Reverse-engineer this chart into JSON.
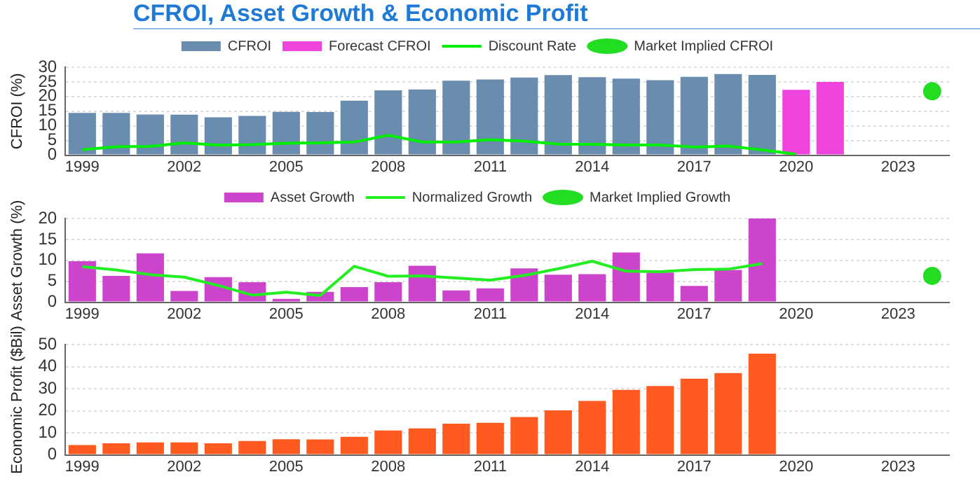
{
  "chart_data": [
    {
      "type": "bar",
      "title": "CFROI, Asset Growth & Economic Profit",
      "ylabel": "CFROI (%)",
      "categories": [
        "1999",
        null,
        null,
        "2002",
        null,
        null,
        "2005",
        null,
        null,
        "2008",
        null,
        null,
        "2011",
        null,
        null,
        "2014",
        null,
        null,
        "2017",
        null,
        null,
        "2020",
        null,
        null,
        "2023",
        null
      ],
      "series": [
        {
          "name": "CFROI",
          "color": "#6a8caf",
          "values": [
            14.4,
            14.4,
            13.9,
            13.8,
            12.9,
            13.4,
            14.8,
            14.7,
            18.6,
            22.1,
            22.4,
            25.4,
            25.8,
            26.5,
            27.3,
            26.6,
            26.1,
            25.6,
            26.7,
            27.7,
            27.4,
            null,
            null,
            null,
            null,
            null
          ]
        },
        {
          "name": "Forecast CFROI",
          "color": "#ee44dd",
          "values": [
            null,
            null,
            null,
            null,
            null,
            null,
            null,
            null,
            null,
            null,
            null,
            null,
            null,
            null,
            null,
            null,
            null,
            null,
            null,
            null,
            null,
            22.3,
            25.0,
            null,
            null,
            null
          ]
        },
        {
          "name": "Discount Rate",
          "type": "line",
          "color": "#00ee00",
          "marker": "none",
          "values": [
            1.9,
            2.9,
            3.0,
            4.2,
            3.4,
            3.6,
            4.1,
            4.2,
            4.5,
            6.8,
            4.5,
            4.5,
            5.3,
            4.8,
            3.8,
            3.7,
            3.5,
            3.5,
            2.8,
            3.1,
            1.8,
            0.3,
            null,
            null,
            null,
            null
          ]
        },
        {
          "name": "Market Implied CFROI",
          "type": "scatter",
          "color": "#22dd22",
          "marker": "circle",
          "values": [
            null,
            null,
            null,
            null,
            null,
            null,
            null,
            null,
            null,
            null,
            null,
            null,
            null,
            null,
            null,
            null,
            null,
            null,
            null,
            null,
            null,
            null,
            null,
            null,
            null,
            21.8
          ]
        }
      ],
      "ylim": [
        0,
        30
      ],
      "yticks": [
        0,
        5,
        10,
        15,
        20,
        25,
        30
      ],
      "grid": "y",
      "legend": "top"
    },
    {
      "type": "bar",
      "ylabel": "Asset Growth (%)",
      "categories": [
        "1999",
        null,
        null,
        "2002",
        null,
        null,
        "2005",
        null,
        null,
        "2008",
        null,
        null,
        "2011",
        null,
        null,
        "2014",
        null,
        null,
        "2017",
        null,
        null,
        "2020",
        null,
        null,
        "2023",
        null
      ],
      "series": [
        {
          "name": "Asset Growth",
          "color": "#cc44cc",
          "values": [
            9.8,
            6.3,
            11.7,
            2.7,
            6.0,
            4.8,
            0.8,
            2.5,
            3.6,
            4.8,
            8.7,
            2.8,
            3.3,
            8.1,
            6.6,
            6.7,
            11.9,
            7.1,
            3.9,
            7.7,
            20,
            null,
            null,
            null,
            null,
            null
          ]
        },
        {
          "name": "Normalized Growth",
          "type": "line",
          "color": "#22ee22",
          "marker": "none",
          "values": [
            8.5,
            7.7,
            6.6,
            6.0,
            4.0,
            1.7,
            2.4,
            1.6,
            8.6,
            6.2,
            6.3,
            5.8,
            5.3,
            6.4,
            8.0,
            9.8,
            7.4,
            7.3,
            7.8,
            7.9,
            9.2,
            null,
            null,
            null,
            null,
            null
          ]
        },
        {
          "name": "Market Implied Growth",
          "type": "scatter",
          "color": "#22dd22",
          "marker": "circle",
          "values": [
            null,
            null,
            null,
            null,
            null,
            null,
            null,
            null,
            null,
            null,
            null,
            null,
            null,
            null,
            null,
            null,
            null,
            null,
            null,
            null,
            null,
            null,
            null,
            null,
            null,
            6.3
          ]
        }
      ],
      "ylim": [
        0,
        20
      ],
      "yticks": [
        0,
        5,
        10,
        15,
        20
      ],
      "grid": "y",
      "legend": "top"
    },
    {
      "type": "bar",
      "ylabel": "Economic Profit ($Bil)",
      "categories": [
        "1999",
        null,
        null,
        "2002",
        null,
        null,
        "2005",
        null,
        null,
        "2008",
        null,
        null,
        "2011",
        null,
        null,
        "2014",
        null,
        null,
        "2017",
        null,
        null,
        "2020",
        null,
        null,
        "2023",
        null
      ],
      "series": [
        {
          "color": "#ff5a1f",
          "values": [
            4.5,
            5.3,
            5.7,
            5.7,
            5.3,
            6.3,
            7.1,
            7.0,
            8.2,
            11.1,
            12.0,
            14.2,
            14.6,
            17.2,
            20.2,
            24.5,
            29.5,
            31.3,
            34.6,
            37.2,
            46.0,
            null,
            null,
            null,
            null,
            null
          ]
        }
      ],
      "ylim": [
        0,
        50
      ],
      "yticks": [
        0,
        10,
        20,
        30,
        40,
        50
      ],
      "grid": "y",
      "legend": false
    }
  ]
}
